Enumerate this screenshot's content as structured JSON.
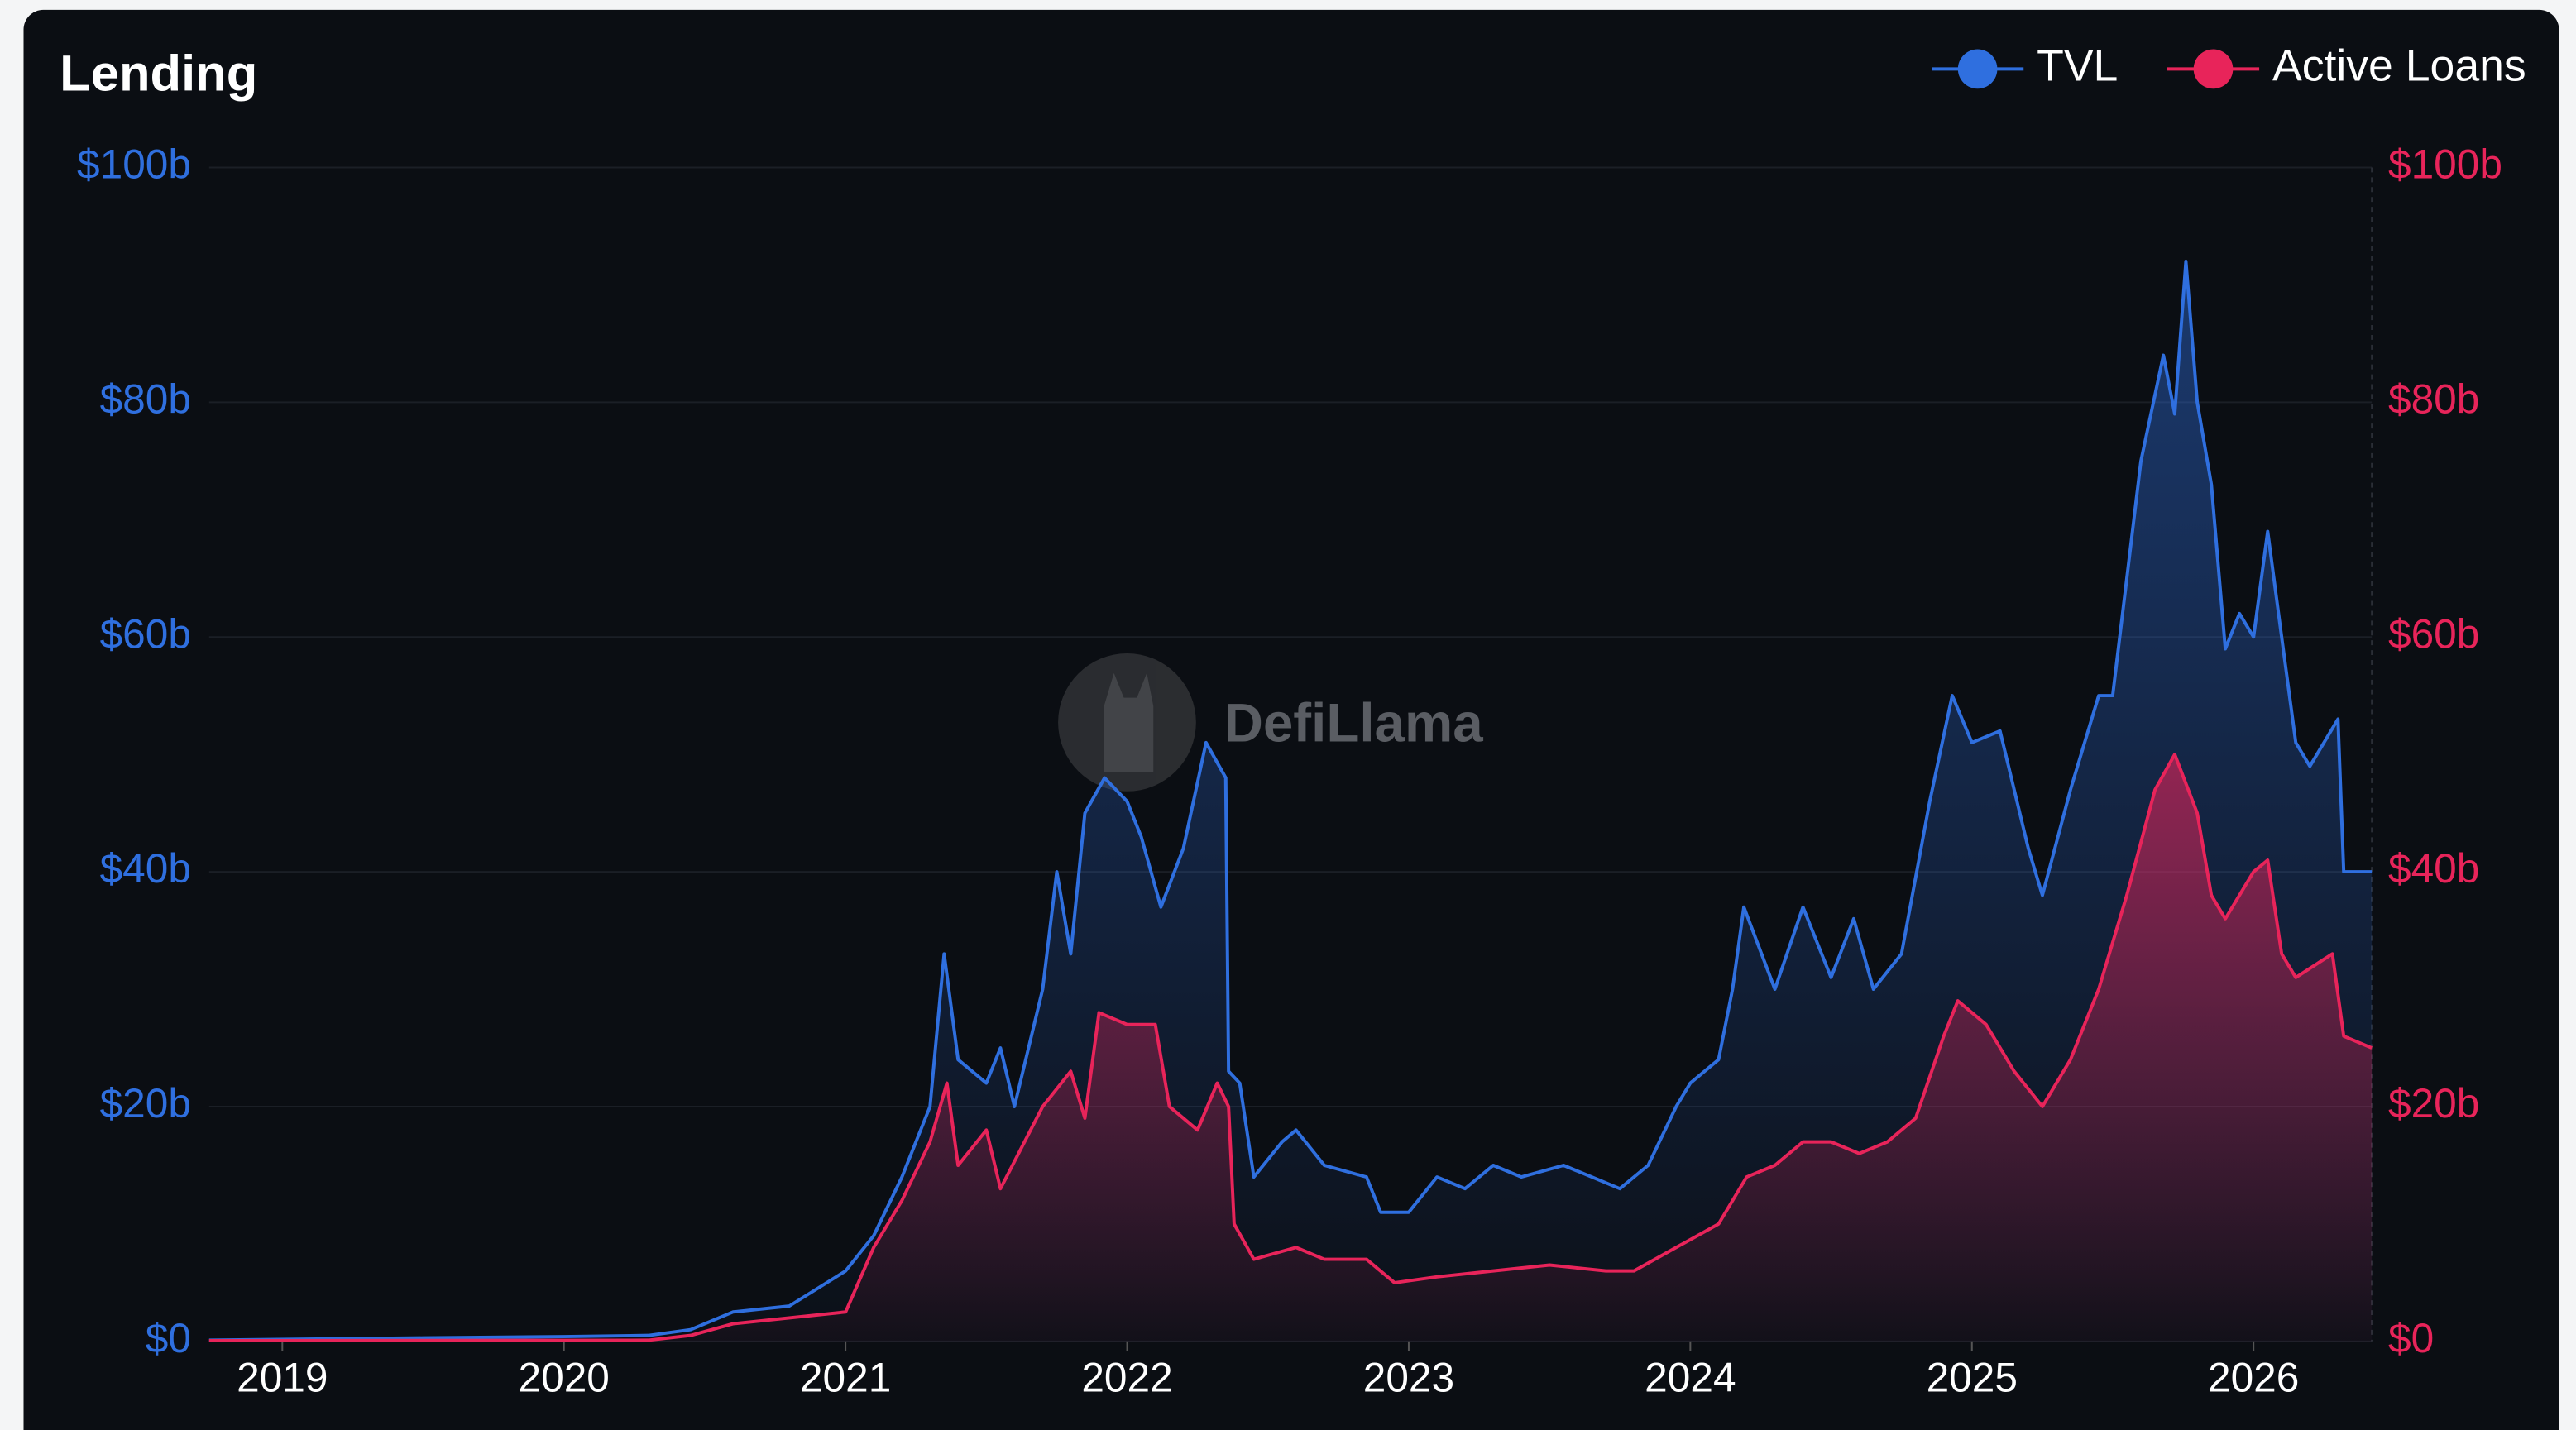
{
  "chart_data": {
    "type": "line",
    "title": "Lending",
    "watermark": "DefiLlama",
    "xlim": [
      2018.74,
      2026.42
    ],
    "xticks": [
      2019,
      2020,
      2021,
      2022,
      2023,
      2024,
      2025,
      2026
    ],
    "ylim": [
      0,
      100
    ],
    "yticks": [
      {
        "value": 0,
        "label": "$0"
      },
      {
        "value": 20,
        "label": "$20b"
      },
      {
        "value": 40,
        "label": "$40b"
      },
      {
        "value": 60,
        "label": "$60b"
      },
      {
        "value": 80,
        "label": "$80b"
      },
      {
        "value": 100,
        "label": "$100b"
      }
    ],
    "y2lim": [
      0,
      100
    ],
    "y2ticks": [
      {
        "value": 0,
        "label": "$0"
      },
      {
        "value": 20,
        "label": "$20b"
      },
      {
        "value": 40,
        "label": "$40b"
      },
      {
        "value": 60,
        "label": "$60b"
      },
      {
        "value": 80,
        "label": "$80b"
      },
      {
        "value": 100,
        "label": "$100b"
      }
    ],
    "grid": true,
    "legend": "top-right",
    "series": [
      {
        "name": "TVL",
        "color": "#2f6fdf",
        "axis": "y",
        "x": [
          2018.74,
          2019.5,
          2020.0,
          2020.3,
          2020.45,
          2020.6,
          2020.8,
          2021.0,
          2021.1,
          2021.2,
          2021.3,
          2021.35,
          2021.4,
          2021.5,
          2021.55,
          2021.6,
          2021.7,
          2021.75,
          2021.8,
          2021.85,
          2021.92,
          2022.0,
          2022.05,
          2022.12,
          2022.2,
          2022.28,
          2022.35,
          2022.36,
          2022.4,
          2022.45,
          2022.55,
          2022.6,
          2022.7,
          2022.85,
          2022.9,
          2023.0,
          2023.1,
          2023.2,
          2023.3,
          2023.4,
          2023.55,
          2023.65,
          2023.75,
          2023.85,
          2023.95,
          2024.0,
          2024.1,
          2024.15,
          2024.19,
          2024.3,
          2024.4,
          2024.5,
          2024.58,
          2024.65,
          2024.75,
          2024.85,
          2024.93,
          2025.0,
          2025.1,
          2025.2,
          2025.25,
          2025.35,
          2025.45,
          2025.5,
          2025.55,
          2025.6,
          2025.68,
          2025.72,
          2025.76,
          2025.8,
          2025.85,
          2025.9,
          2025.95,
          2026.0,
          2026.05,
          2026.1,
          2026.15,
          2026.2,
          2026.3,
          2026.32,
          2026.42
        ],
        "values": [
          0.1,
          0.3,
          0.4,
          0.5,
          1,
          2.5,
          3,
          6,
          9,
          14,
          20,
          33,
          24,
          22,
          25,
          20,
          30,
          40,
          33,
          45,
          48,
          46,
          43,
          37,
          42,
          51,
          48,
          23,
          22,
          14,
          17,
          18,
          15,
          14,
          11,
          11,
          14,
          13,
          15,
          14,
          15,
          14,
          13,
          15,
          20,
          22,
          24,
          30,
          37,
          30,
          37,
          31,
          36,
          30,
          33,
          46,
          55,
          51,
          52,
          42,
          38,
          47,
          55,
          55,
          65,
          75,
          84,
          79,
          92,
          80,
          73,
          59,
          62,
          60,
          69,
          60,
          51,
          49,
          53,
          40,
          40
        ]
      },
      {
        "name": "Active Loans",
        "color": "#e8245a",
        "axis": "y2",
        "x": [
          2018.74,
          2020.3,
          2020.45,
          2020.6,
          2021.0,
          2021.1,
          2021.2,
          2021.3,
          2021.36,
          2021.4,
          2021.5,
          2021.55,
          2021.7,
          2021.8,
          2021.85,
          2021.9,
          2022.0,
          2022.1,
          2022.15,
          2022.25,
          2022.32,
          2022.36,
          2022.38,
          2022.45,
          2022.6,
          2022.7,
          2022.85,
          2022.95,
          2023.1,
          2023.3,
          2023.5,
          2023.7,
          2023.8,
          2023.95,
          2024.1,
          2024.2,
          2024.3,
          2024.4,
          2024.5,
          2024.6,
          2024.7,
          2024.8,
          2024.9,
          2024.95,
          2025.05,
          2025.15,
          2025.25,
          2025.35,
          2025.45,
          2025.55,
          2025.65,
          2025.72,
          2025.8,
          2025.85,
          2025.9,
          2026.0,
          2026.05,
          2026.1,
          2026.15,
          2026.28,
          2026.32,
          2026.42
        ],
        "values": [
          0.05,
          0.1,
          0.5,
          1.5,
          2.5,
          8,
          12,
          17,
          22,
          15,
          18,
          13,
          20,
          23,
          19,
          28,
          27,
          27,
          20,
          18,
          22,
          20,
          10,
          7,
          8,
          7,
          7,
          5,
          5.5,
          6,
          6.5,
          6,
          6,
          8,
          10,
          14,
          15,
          17,
          17,
          16,
          17,
          19,
          26,
          29,
          27,
          23,
          20,
          24,
          30,
          38,
          47,
          50,
          45,
          38,
          36,
          40,
          41,
          33,
          31,
          33,
          26,
          25
        ]
      }
    ]
  }
}
